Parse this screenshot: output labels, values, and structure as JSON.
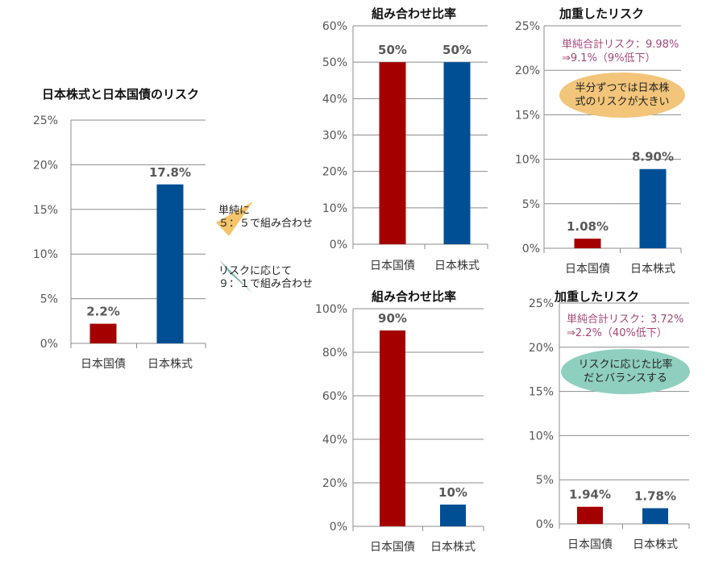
{
  "colors": {
    "jgb": "#a50000",
    "equity": "#004f94",
    "bubble_orange": "#f2c57a",
    "bubble_teal": "#8fcfbf",
    "note": "#a3477a",
    "arrow_orange": "#f4c56b",
    "arrow_teal": "#7fb3b0"
  },
  "arrows": {
    "top": {
      "line1": "単純に",
      "line2": "５：５で組み合わせ"
    },
    "bottom": {
      "line1": "リスクに応じて",
      "line2": "９：１で組み合わせ"
    }
  },
  "chart_data": [
    {
      "id": "main",
      "type": "bar",
      "title": "日本株式と日本国債のリスク",
      "categories": [
        "日本国債",
        "日本株式"
      ],
      "values": [
        2.2,
        17.8
      ],
      "value_labels": [
        "2.2%",
        "17.8%"
      ],
      "ylim": [
        0,
        25
      ],
      "yticks": [
        "0%",
        "5%",
        "10%",
        "15%",
        "20%",
        "25%"
      ],
      "grid": true
    },
    {
      "id": "mix1",
      "type": "bar",
      "title": "組み合わせ比率",
      "categories": [
        "日本国債",
        "日本株式"
      ],
      "values": [
        50,
        50
      ],
      "value_labels": [
        "50%",
        "50%"
      ],
      "ylim": [
        0,
        60
      ],
      "yticks": [
        "0%",
        "10%",
        "20%",
        "30%",
        "40%",
        "50%",
        "60%"
      ],
      "grid": true
    },
    {
      "id": "risk1",
      "type": "bar",
      "title": "加重したリスク",
      "categories": [
        "日本国債",
        "日本株式"
      ],
      "values": [
        1.08,
        8.9
      ],
      "value_labels": [
        "1.08%",
        "8.90%"
      ],
      "ylim": [
        0,
        25
      ],
      "yticks": [
        "0%",
        "5%",
        "10%",
        "15%",
        "20%",
        "25%"
      ],
      "grid": true,
      "note": {
        "line1": "単純合計リスク：9.98%",
        "line2": "⇒9.1%（9%低下）"
      },
      "bubble": {
        "line1": "半分ずつでは日本株",
        "line2": "式のリスクが大きい"
      }
    },
    {
      "id": "mix2",
      "type": "bar",
      "title": "組み合わせ比率",
      "categories": [
        "日本国債",
        "日本株式"
      ],
      "values": [
        90,
        10
      ],
      "value_labels": [
        "90%",
        "10%"
      ],
      "ylim": [
        0,
        100
      ],
      "yticks": [
        "0%",
        "20%",
        "40%",
        "60%",
        "80%",
        "100%"
      ],
      "grid": true
    },
    {
      "id": "risk2",
      "type": "bar",
      "title": "加重したリスク",
      "categories": [
        "日本国債",
        "日本株式"
      ],
      "values": [
        1.94,
        1.78
      ],
      "value_labels": [
        "1.94%",
        "1.78%"
      ],
      "ylim": [
        0,
        25
      ],
      "yticks": [
        "0%",
        "5%",
        "10%",
        "15%",
        "20%",
        "25%"
      ],
      "grid": true,
      "note": {
        "line1": "単純合計リスク：3.72%",
        "line2": "⇒2.2%（40%低下）"
      },
      "bubble": {
        "line1": "リスクに応じた比率",
        "line2": "だとバランスする"
      }
    }
  ]
}
